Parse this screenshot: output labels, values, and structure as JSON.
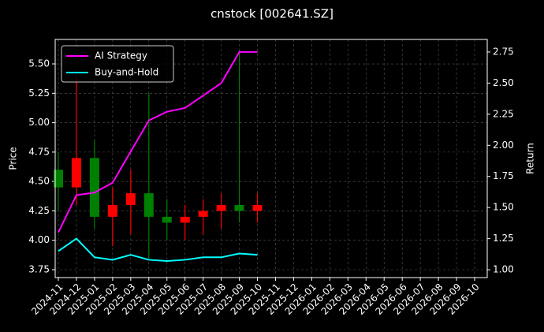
{
  "chart_data": {
    "type": "candlestick",
    "title": "cnstock [002641.SZ]",
    "y_label": "Price",
    "y2_label": "Return",
    "x": [
      "2024-11",
      "2024-12",
      "2025-01",
      "2025-02",
      "2025-03",
      "2025-04",
      "2025-05",
      "2025-06",
      "2025-07",
      "2025-08",
      "2025-09",
      "2025-10"
    ],
    "open": [
      4.6,
      4.45,
      4.7,
      4.2,
      4.3,
      4.4,
      4.2,
      4.15,
      4.2,
      4.25,
      4.3,
      4.25
    ],
    "high": [
      4.75,
      5.4,
      4.85,
      4.45,
      4.6,
      5.25,
      4.35,
      4.3,
      4.35,
      4.4,
      5.6,
      4.4
    ],
    "low": [
      4.25,
      4.3,
      4.1,
      3.95,
      4.05,
      3.85,
      4.0,
      4.0,
      4.05,
      4.1,
      4.15,
      4.15
    ],
    "close": [
      4.45,
      4.7,
      4.2,
      4.3,
      4.4,
      4.2,
      4.15,
      4.2,
      4.25,
      4.3,
      4.25,
      4.3
    ],
    "up_color": "#ff0000",
    "down_color": "#008000",
    "series": [
      {
        "name": "AI Strategy",
        "color": "#ff00ff",
        "axis": "y2",
        "values": [
          1.3,
          1.6,
          1.62,
          1.7,
          1.95,
          2.2,
          2.27,
          2.3,
          2.4,
          2.5,
          2.75,
          2.75
        ]
      },
      {
        "name": "Buy-and-Hold",
        "color": "#00ffff",
        "axis": "y2",
        "values": [
          1.15,
          1.25,
          1.1,
          1.08,
          1.12,
          1.08,
          1.07,
          1.08,
          1.1,
          1.1,
          1.13,
          1.12
        ]
      }
    ],
    "xlim": [
      "2024-11",
      "2026-10"
    ],
    "xticks": [
      "2024-11",
      "2024-12",
      "2025-01",
      "2025-02",
      "2025-03",
      "2025-04",
      "2025-05",
      "2025-06",
      "2025-07",
      "2025-08",
      "2025-09",
      "2025-10",
      "2025-11",
      "2025-12",
      "2026-01",
      "2026-02",
      "2026-03",
      "2026-04",
      "2026-05",
      "2026-06",
      "2026-07",
      "2026-08",
      "2026-09",
      "2026-10"
    ],
    "ylim": [
      3.683,
      5.708
    ],
    "yticks": [
      3.75,
      {
        "value": 4,
        "label": "4.00"
      },
      4.25,
      {
        "value": 4.5,
        "label": "4.50"
      },
      4.75,
      {
        "value": 5,
        "label": "5.00"
      },
      5.25,
      {
        "value": 5.5,
        "label": "5.50"
      }
    ],
    "y2lim": [
      0.937,
      2.851
    ],
    "y2ticks": [
      {
        "value": 1,
        "label": "1.00"
      },
      1.25,
      {
        "value": 1.5,
        "label": "1.50"
      },
      1.75,
      {
        "value": 2,
        "label": "2.00"
      },
      2.25,
      {
        "value": 2.5,
        "label": "2.50"
      },
      2.75
    ],
    "grid": true,
    "legend": "upper left"
  }
}
